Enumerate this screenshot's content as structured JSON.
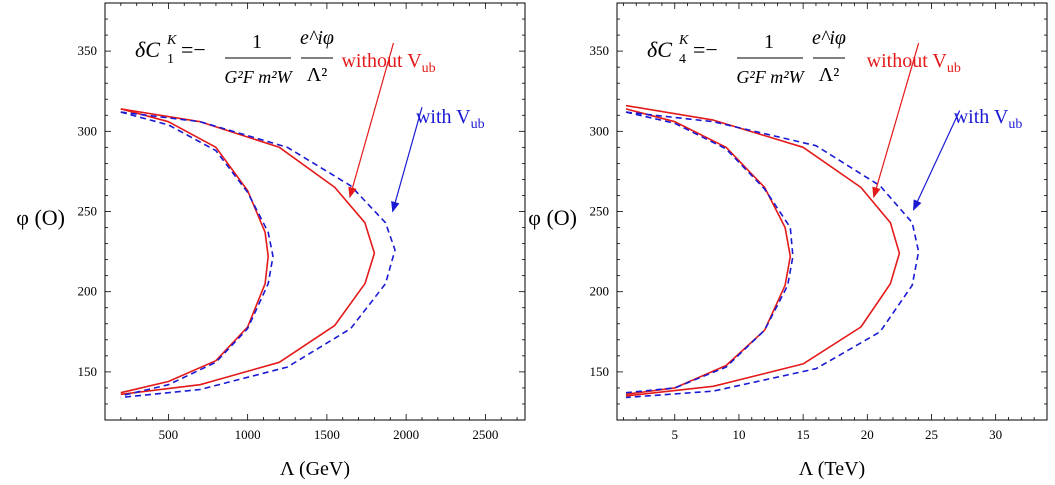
{
  "colors": {
    "without": "#e41a1a",
    "with": "#1a1ad4",
    "axis": "#000000"
  },
  "chart_data": [
    {
      "type": "line",
      "title": "",
      "xlabel": "Λ (GeV)",
      "ylabel": "φ (O)",
      "xlim": [
        100,
        2750
      ],
      "ylim": [
        120,
        380
      ],
      "xticks": [
        500,
        1000,
        1500,
        2000,
        2500
      ],
      "yticks": [
        150,
        200,
        250,
        300,
        350
      ],
      "grid": false,
      "formula": {
        "lhs": "δC",
        "sub": "1",
        "sup": "K",
        "eq": "=−",
        "num": "1",
        "den": "G²F m²W",
        "frac2_num": "e^iφ",
        "frac2_den": "Λ²"
      },
      "labels": {
        "without": "without V",
        "without_sub": "ub",
        "with": "with V",
        "with_sub": "ub"
      },
      "series": [
        {
          "name": "without V_ub",
          "style": "solid",
          "color": "red",
          "x": [
            200,
            500,
            800,
            1000,
            1110,
            1130,
            1110,
            1000,
            800,
            500,
            200
          ],
          "y": [
            314,
            306,
            290,
            263,
            237,
            222,
            205,
            178,
            157,
            144,
            137
          ]
        },
        {
          "name": "without V_ub",
          "style": "solid",
          "color": "red",
          "x": [
            200,
            700,
            1200,
            1550,
            1740,
            1800,
            1740,
            1550,
            1200,
            700,
            200
          ],
          "y": [
            314,
            306,
            290,
            265,
            243,
            224,
            205,
            179,
            156,
            142,
            136
          ]
        },
        {
          "name": "with V_ub",
          "style": "dashed",
          "color": "blue",
          "x": [
            200,
            500,
            800,
            1000,
            1130,
            1160,
            1130,
            1000,
            800,
            500,
            200
          ],
          "y": [
            312,
            304,
            288,
            262,
            237,
            222,
            205,
            177,
            156,
            142,
            135
          ]
        },
        {
          "name": "with V_ub",
          "style": "dashed",
          "color": "blue",
          "x": [
            200,
            700,
            1250,
            1650,
            1870,
            1930,
            1870,
            1650,
            1250,
            700,
            200
          ],
          "y": [
            312,
            306,
            290,
            266,
            243,
            226,
            205,
            177,
            153,
            139,
            134
          ]
        }
      ],
      "arrows": [
        {
          "series": "without",
          "from": [
            1920,
            355
          ],
          "to": [
            1645,
            259
          ]
        },
        {
          "series": "with",
          "from": [
            2100,
            315
          ],
          "to": [
            1915,
            250
          ]
        }
      ]
    },
    {
      "type": "line",
      "title": "",
      "xlabel": "Λ (TeV)",
      "ylabel": "φ (O)",
      "xlim": [
        0.5,
        34
      ],
      "ylim": [
        120,
        380
      ],
      "xticks": [
        5,
        10,
        15,
        20,
        25,
        30
      ],
      "yticks": [
        150,
        200,
        250,
        300,
        350
      ],
      "grid": false,
      "formula": {
        "lhs": "δC",
        "sub": "4",
        "sup": "K",
        "eq": "=−",
        "num": "1",
        "den": "G²F m²W",
        "frac2_num": "e^iφ",
        "frac2_den": "Λ²"
      },
      "labels": {
        "without": "without V",
        "without_sub": "ub",
        "with": "with V",
        "with_sub": "ub"
      },
      "series": [
        {
          "name": "without V_ub",
          "style": "solid",
          "color": "red",
          "x": [
            1.2,
            5,
            9,
            12,
            13.6,
            14,
            13.6,
            12,
            9,
            5,
            1.2
          ],
          "y": [
            314,
            306,
            290,
            265,
            240,
            222,
            204,
            176,
            154,
            140,
            136
          ]
        },
        {
          "name": "without V_ub",
          "style": "solid",
          "color": "red",
          "x": [
            1.2,
            8,
            15,
            19.5,
            21.8,
            22.5,
            21.8,
            19.5,
            15,
            8,
            1.2
          ],
          "y": [
            316,
            307,
            290,
            265,
            243,
            224,
            205,
            178,
            155,
            141,
            135
          ]
        },
        {
          "name": "with V_ub",
          "style": "dashed",
          "color": "blue",
          "x": [
            1.2,
            5,
            9,
            12,
            14,
            14.2,
            13.8,
            12,
            9,
            5,
            1.2
          ],
          "y": [
            312,
            305,
            289,
            264,
            240,
            222,
            204,
            176,
            153,
            140,
            137
          ]
        },
        {
          "name": "with V_ub",
          "style": "dashed",
          "color": "blue",
          "x": [
            1.2,
            8,
            16,
            21,
            23.5,
            24,
            23.5,
            21,
            16,
            8,
            1.2
          ],
          "y": [
            312,
            306,
            291,
            266,
            243,
            225,
            204,
            175,
            152,
            138,
            134
          ]
        }
      ],
      "arrows": [
        {
          "series": "without",
          "from": [
            24,
            355
          ],
          "to": [
            20.5,
            259
          ]
        },
        {
          "series": "with",
          "from": [
            27.2,
            313
          ],
          "to": [
            23.6,
            251
          ]
        }
      ]
    }
  ]
}
